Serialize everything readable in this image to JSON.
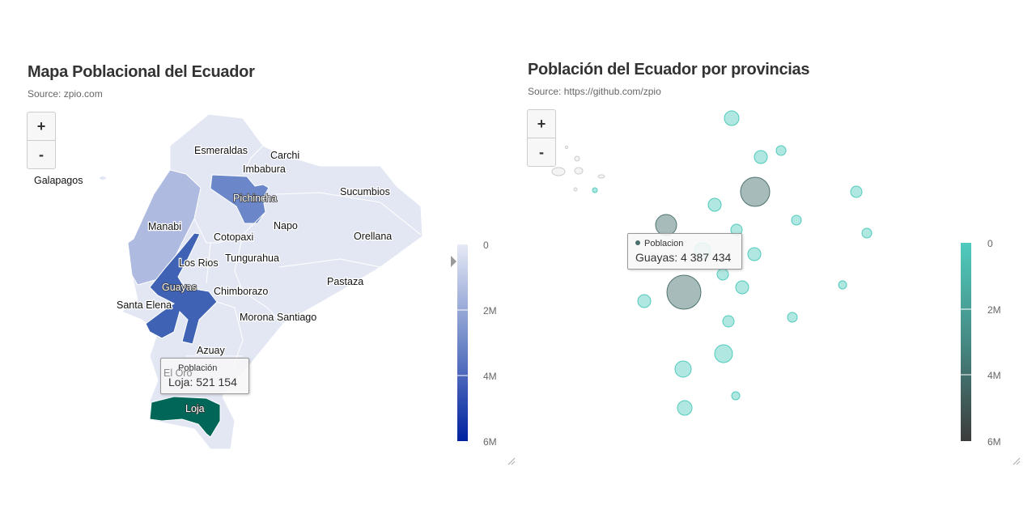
{
  "left": {
    "title": "Mapa Poblacional del Ecuador",
    "subtitle": "Source: zpio.com",
    "zoom_in": "+",
    "zoom_out": "-",
    "labels": {
      "galapagos": "Galapagos",
      "esmeraldas": "Esmeraldas",
      "carchi": "Carchi",
      "imbabura": "Imbabura",
      "pichincha": "Pichincha",
      "sucumbios": "Sucumbios",
      "manabi": "Manabi",
      "napo": "Napo",
      "cotopaxi": "Cotopaxi",
      "orellana": "Orellana",
      "los_rios": "Los Rios",
      "tungurahua": "Tungurahua",
      "guayas": "Guayas",
      "pastaza": "Pastaza",
      "chimborazo": "Chimborazo",
      "santa_elena": "Santa Elena",
      "morona": "Morona Santiago",
      "azuay": "Azuay",
      "el_oro": "El Oro",
      "loja": "Loja"
    },
    "legend": {
      "ticks": [
        "0",
        "2M",
        "4M",
        "6M"
      ],
      "colors": [
        "#e6eaf5",
        "#0022a0"
      ]
    },
    "tooltip": {
      "header": "Población",
      "value": "Loja: 521 154"
    },
    "hover_color": "#006657"
  },
  "right": {
    "title": "Población del Ecuador por provincias",
    "subtitle": "Source: https://github.com/zpio",
    "zoom_in": "+",
    "zoom_out": "-",
    "legend": {
      "ticks": [
        "0",
        "2M",
        "4M",
        "6M"
      ],
      "colors": [
        "#4fcbbd",
        "#3c3c3c"
      ]
    },
    "tooltip": {
      "header": "Poblacion",
      "value": "Guayas: 4 387 434"
    }
  }
}
